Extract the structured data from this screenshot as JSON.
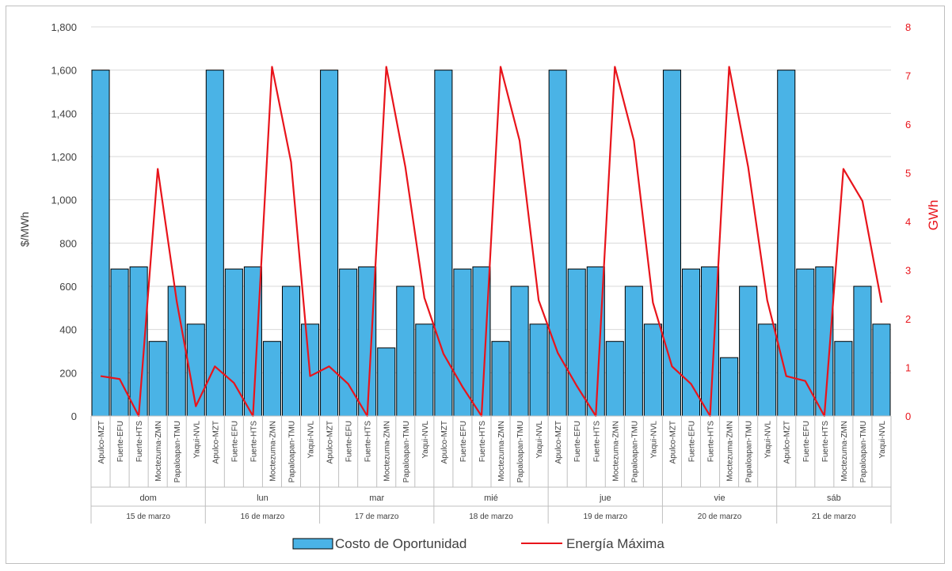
{
  "colors": {
    "bar_fill": "#4ab3e6",
    "bar_stroke": "#000000",
    "line": "#e8141b",
    "left_axis_text": "#404040",
    "right_axis_text": "#e8141b",
    "grid": "#d9d9d9"
  },
  "chart_data": {
    "type": "bar",
    "title": "",
    "ylabel": "$/MWh",
    "y2label": "GWh",
    "ylim": [
      0,
      1800
    ],
    "yticks": [
      "0",
      "200",
      "400",
      "600",
      "800",
      "1,000",
      "1,200",
      "1,400",
      "1,600",
      "1,800"
    ],
    "y2lim": [
      0,
      8
    ],
    "y2ticks": [
      "0",
      "1",
      "2",
      "3",
      "4",
      "5",
      "6",
      "7",
      "8"
    ],
    "grid": true,
    "legend_position": "bottom",
    "categories": [
      "Apulco-MZT",
      "Fuerte-EFU",
      "Fuerte-HTS",
      "Moctezuma-ZMN",
      "Papaloapan-TMU",
      "Yaqui-NVL",
      "Apulco-MZT",
      "Fuerte-EFU",
      "Fuerte-HTS",
      "Moctezuma-ZMN",
      "Papaloapan-TMU",
      "Yaqui-NVL",
      "Apulco-MZT",
      "Fuerte-EFU",
      "Fuerte-HTS",
      "Moctezuma-ZMN",
      "Papaloapan-TMU",
      "Yaqui-NVL",
      "Apulco-MZT",
      "Fuerte-EFU",
      "Fuerte-HTS",
      "Moctezuma-ZMN",
      "Papaloapan-TMU",
      "Yaqui-NVL",
      "Apulco-MZT",
      "Fuerte-EFU",
      "Fuerte-HTS",
      "Moctezuma-ZMN",
      "Papaloapan-TMU",
      "Yaqui-NVL",
      "Apulco-MZT",
      "Fuerte-EFU",
      "Fuerte-HTS",
      "Moctezuma-ZMN",
      "Papaloapan-TMU",
      "Yaqui-NVL",
      "Apulco-MZT",
      "Fuerte-EFU",
      "Fuerte-HTS",
      "Moctezuma-ZMN",
      "Papaloapan-TMU",
      "Yaqui-NVL"
    ],
    "groups": [
      {
        "day": "dom",
        "date": "15 de marzo"
      },
      {
        "day": "lun",
        "date": "16 de marzo"
      },
      {
        "day": "mar",
        "date": "17 de marzo"
      },
      {
        "day": "mié",
        "date": "18 de marzo"
      },
      {
        "day": "jue",
        "date": "19 de marzo"
      },
      {
        "day": "vie",
        "date": "20 de marzo"
      },
      {
        "day": "sáb",
        "date": "21 de marzo"
      }
    ],
    "series": [
      {
        "name": "Costo de Oportunidad",
        "type": "bar",
        "axis": "left",
        "values": [
          1600,
          680,
          690,
          345,
          600,
          425,
          1600,
          680,
          690,
          345,
          600,
          425,
          1600,
          680,
          690,
          315,
          600,
          425,
          1600,
          680,
          690,
          345,
          600,
          425,
          1600,
          680,
          690,
          345,
          600,
          425,
          1600,
          680,
          690,
          270,
          600,
          425,
          1600,
          680,
          690,
          345,
          600,
          425
        ]
      },
      {
        "name": "Energía Máxima",
        "type": "line",
        "axis": "right",
        "values": [
          0.82,
          0.76,
          0.0,
          5.08,
          2.35,
          0.2,
          1.02,
          0.68,
          0.0,
          7.18,
          5.22,
          0.82,
          1.02,
          0.66,
          0.0,
          7.18,
          5.12,
          2.43,
          1.28,
          0.6,
          0.0,
          7.18,
          5.66,
          2.38,
          1.3,
          0.62,
          0.0,
          7.18,
          5.66,
          2.33,
          1.02,
          0.66,
          0.0,
          7.18,
          5.12,
          2.38,
          0.82,
          0.72,
          0.0,
          5.08,
          4.42,
          2.33
        ]
      }
    ]
  }
}
